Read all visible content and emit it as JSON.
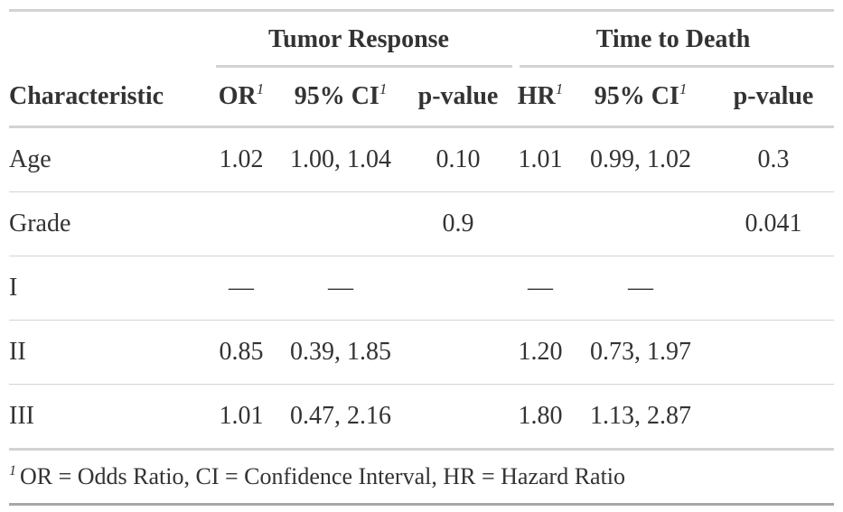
{
  "spanners": {
    "tumor_response": "Tumor Response",
    "time_to_death": "Time to Death"
  },
  "columns": {
    "characteristic": "Characteristic",
    "or": "OR",
    "ci1": "95% CI",
    "p1": "p-value",
    "hr": "HR",
    "ci2": "95% CI",
    "p2": "p-value",
    "footnote_mark": "1"
  },
  "rows": [
    {
      "label": "Age",
      "or": "1.02",
      "ci1": "1.00, 1.04",
      "p1": "0.10",
      "hr": "1.01",
      "ci2": "0.99, 1.02",
      "p2": "0.3"
    },
    {
      "label": "Grade",
      "or": "",
      "ci1": "",
      "p1": "0.9",
      "hr": "",
      "ci2": "",
      "p2": "0.041"
    },
    {
      "label": "I",
      "or": "—",
      "ci1": "—",
      "p1": "",
      "hr": "—",
      "ci2": "—",
      "p2": ""
    },
    {
      "label": "II",
      "or": "0.85",
      "ci1": "0.39, 1.85",
      "p1": "",
      "hr": "1.20",
      "ci2": "0.73, 1.97",
      "p2": ""
    },
    {
      "label": "III",
      "or": "1.01",
      "ci1": "0.47, 2.16",
      "p1": "",
      "hr": "1.80",
      "ci2": "1.13, 2.87",
      "p2": ""
    }
  ],
  "footnote": {
    "mark": "1",
    "text": "OR = Odds Ratio, CI = Confidence Interval, HR = Hazard Ratio"
  }
}
